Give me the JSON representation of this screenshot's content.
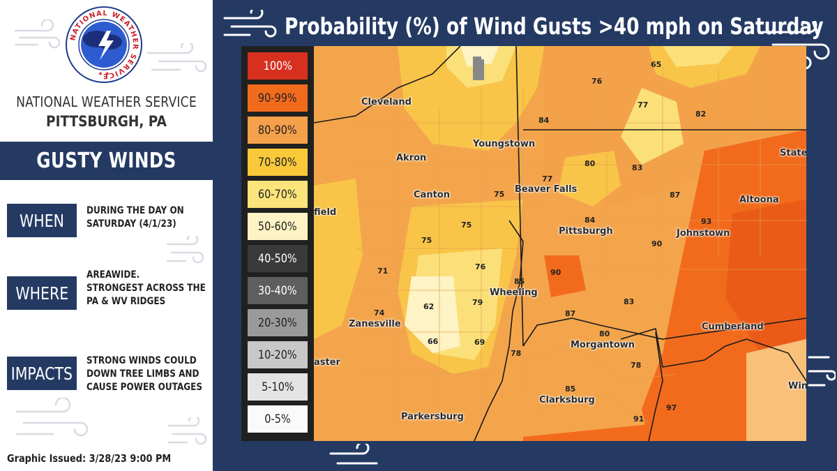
{
  "office": {
    "line1": "NATIONAL WEATHER SERVICE",
    "line2": "PITTSBURGH, PA",
    "logo_text": "NATIONAL WEATHER SERVICE"
  },
  "banner": {
    "label": "GUSTY WINDS"
  },
  "info": [
    {
      "label": "WHEN",
      "lines": [
        "DURING THE DAY ON",
        "SATURDAY (4/1/23)"
      ]
    },
    {
      "label": "WHERE",
      "lines": [
        "AREAWIDE.",
        "STRONGEST ACROSS THE",
        "PA & WV RIDGES"
      ]
    },
    {
      "label": "IMPACTS",
      "lines": [
        "STRONG WINDS COULD",
        "DOWN TREE LIMBS AND",
        "CAUSE POWER OUTAGES"
      ]
    }
  ],
  "issued": "Graphic Issued: 3/28/23 9:00 PM",
  "map": {
    "title": "Probability (%) of Wind Gusts >40 mph on Saturday",
    "legend": [
      {
        "label": "100%",
        "color": "#d7301f",
        "text_color": "#ffffff"
      },
      {
        "label": "90-99%",
        "color": "#f26b1d",
        "text_color": "#222222"
      },
      {
        "label": "80-90%",
        "color": "#f5a04a",
        "text_color": "#222222"
      },
      {
        "label": "70-80%",
        "color": "#f9c93a",
        "text_color": "#222222"
      },
      {
        "label": "60-70%",
        "color": "#fbe47a",
        "text_color": "#222222"
      },
      {
        "label": "50-60%",
        "color": "#fdf3c4",
        "text_color": "#222222"
      },
      {
        "label": "40-50%",
        "color": "#3a3a3a",
        "text_color": "#ffffff"
      },
      {
        "label": "30-40%",
        "color": "#5e5e5e",
        "text_color": "#ffffff"
      },
      {
        "label": "20-30%",
        "color": "#9a9a9a",
        "text_color": "#222222"
      },
      {
        "label": "10-20%",
        "color": "#c8c8c8",
        "text_color": "#222222"
      },
      {
        "label": "5-10%",
        "color": "#e4e4e4",
        "text_color": "#222222"
      },
      {
        "label": "0-5%",
        "color": "#fafafa",
        "text_color": "#222222"
      }
    ],
    "cities": {
      "cleveland": "Cleveland",
      "youngstown": "Youngstown",
      "akron": "Akron",
      "canton": "Canton",
      "beaver_falls": "Beaver Falls",
      "pittsburgh": "Pittsburgh",
      "johnstown": "Johnstown",
      "altoona": "Altoona",
      "state": "State",
      "wheeling": "Wheeling",
      "zanesville": "Zanesville",
      "morgantown": "Morgantown",
      "cumberland": "Cumberland",
      "clarksburg": "Clarksburg",
      "parkersburg": "Parkersburg",
      "winc": "Winc",
      "field": "field",
      "aster": "aster"
    },
    "values": {
      "v65": "65",
      "v76": "76",
      "v77": "77",
      "v82": "82",
      "v84a": "84",
      "v80a": "80",
      "v83a": "83",
      "v87a": "87",
      "v77b": "77",
      "v75a": "75",
      "v84b": "84",
      "v93": "93",
      "v75b": "75",
      "v75c": "75",
      "v90a": "90",
      "v71": "71",
      "v76b": "76",
      "v85a": "85",
      "v90b": "90",
      "v74": "74",
      "v62": "62",
      "v79": "79",
      "v87b": "87",
      "v83b": "83",
      "v80b": "80",
      "v66": "66",
      "v69": "69",
      "v78a": "78",
      "v78b": "78",
      "v85b": "85",
      "v97": "97",
      "v91": "91"
    }
  }
}
